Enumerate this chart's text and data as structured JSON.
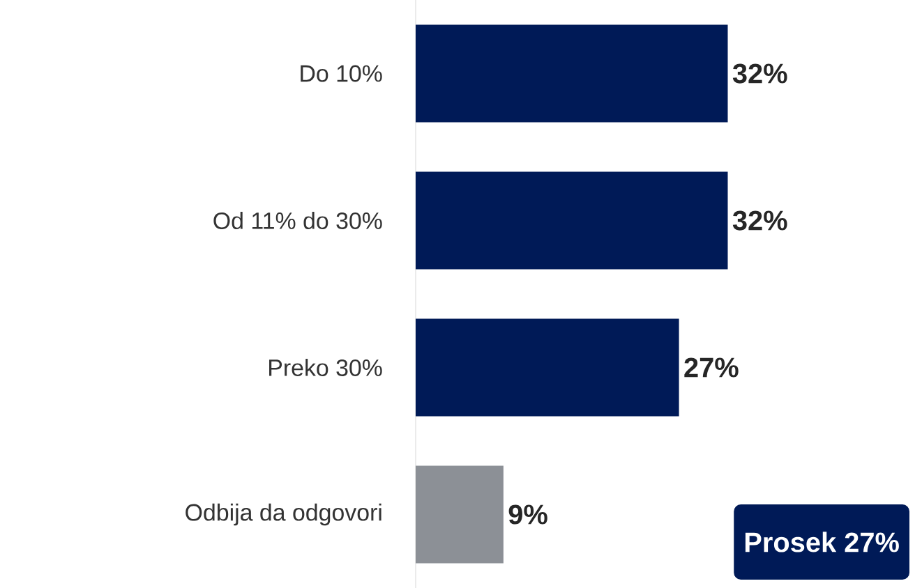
{
  "chart_data": {
    "type": "bar",
    "orientation": "horizontal",
    "categories": [
      "Do 10%",
      "Od 11% do 30%",
      "Preko 30%",
      "Odbija da odgovori"
    ],
    "values": [
      32,
      32,
      27,
      9
    ],
    "colors": [
      "#001a57",
      "#001a57",
      "#001a57",
      "#8c9096"
    ],
    "value_labels": [
      "32%",
      "32%",
      "27%",
      "9%"
    ],
    "annotations": [
      "Prosek 27%"
    ]
  }
}
